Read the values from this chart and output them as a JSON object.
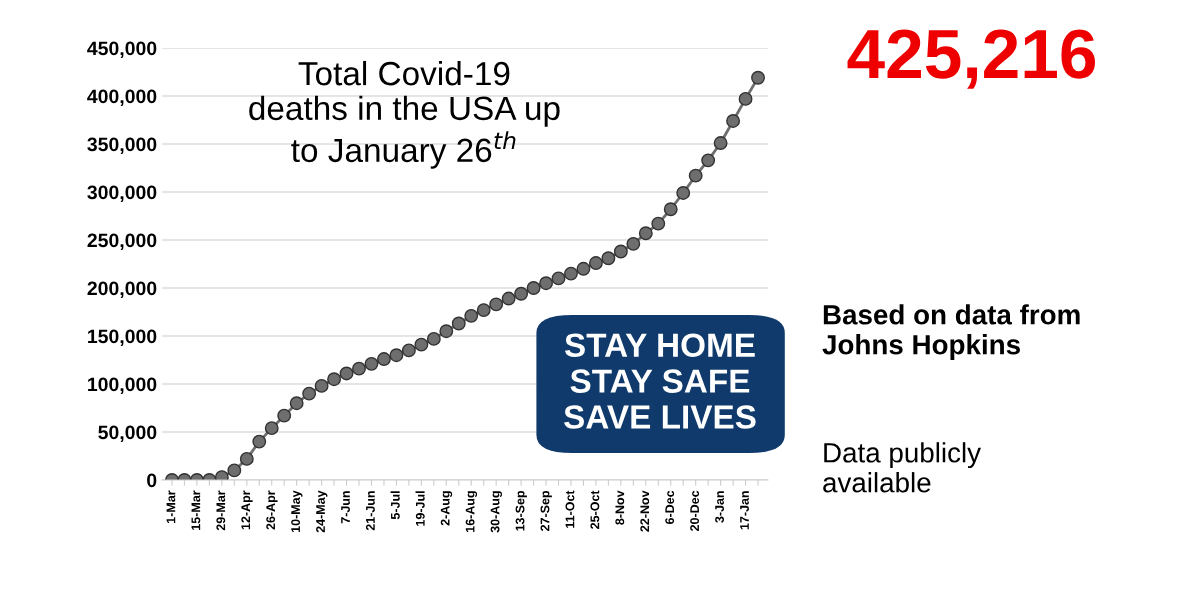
{
  "chart_data": {
    "type": "line",
    "title": "Total Covid-19\ndeaths in the USA up\nto January 26$^{th}$",
    "categories": [
      "1-Mar",
      null,
      "15-Mar",
      null,
      "29-Mar",
      null,
      "12-Apr",
      null,
      "26-Apr",
      null,
      "10-May",
      null,
      "24-May",
      null,
      "7-Jun",
      null,
      "21-Jun",
      null,
      "5-Jul",
      null,
      "19-Jul",
      null,
      "2-Aug",
      null,
      "16-Aug",
      null,
      "30-Aug",
      null,
      "13-Sep",
      null,
      "27-Sep",
      null,
      "11-Oct",
      null,
      "25-Oct",
      null,
      "8-Nov",
      null,
      "22-Nov",
      null,
      "6-Dec",
      null,
      "20-Dec",
      null,
      "3-Jan",
      null,
      "17-Jan",
      null
    ],
    "series": [
      {
        "color": "#6e6e6e",
        "values": [
          0,
          0,
          0,
          0,
          3000,
          10000,
          22000,
          40000,
          54000,
          67000,
          80000,
          90000,
          98000,
          105000,
          111000,
          116000,
          121000,
          126000,
          130000,
          135000,
          141000,
          147000,
          155000,
          163000,
          171000,
          177000,
          183000,
          189000,
          194000,
          200000,
          205000,
          210000,
          215000,
          220000,
          226000,
          231000,
          238000,
          246000,
          257000,
          267000,
          282000,
          299000,
          317000,
          333000,
          351000,
          374000,
          397000,
          419000
        ]
      }
    ],
    "ylim": [
      0,
      450000
    ],
    "yticks": [
      {
        "value": 0,
        "label": "0"
      },
      {
        "value": 50000,
        "label": "50,000"
      },
      {
        "value": 100000,
        "label": "100,000"
      },
      {
        "value": 150000,
        "label": "150,000"
      },
      {
        "value": 200000,
        "label": "200,000"
      },
      {
        "value": 250000,
        "label": "250,000"
      },
      {
        "value": 300000,
        "label": "300,000"
      },
      {
        "value": 350000,
        "label": "350,000"
      },
      {
        "value": 400000,
        "label": "400,000"
      },
      {
        "value": 450000,
        "label": "450,000"
      }
    ],
    "grid": "y",
    "marker": "circle",
    "line_style": "solid",
    "annotations": [
      "425,216",
      "Based on data from\nJohns Hopkins",
      "Data publicly\navailable",
      "STAY HOME\nSTAY SAFE\nSAVE LIVES"
    ]
  }
}
